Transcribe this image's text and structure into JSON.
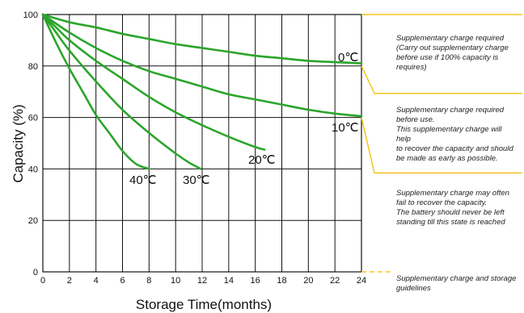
{
  "chart_data": {
    "type": "line",
    "xlabel": "Storage  Time(months)",
    "ylabel": "Capacity  (%)",
    "xlim": [
      0,
      24
    ],
    "ylim": [
      0,
      100
    ],
    "xticks": [
      "0",
      "2",
      "4",
      "6",
      "8",
      "10",
      "12",
      "14",
      "16",
      "18",
      "20",
      "22",
      "24"
    ],
    "yticks": [
      "0",
      "20",
      "40",
      "60",
      "80",
      "100"
    ],
    "grid": true,
    "series": [
      {
        "name": "0℃",
        "x": [
          0,
          2,
          4,
          6,
          8,
          10,
          12,
          14,
          16,
          18,
          20,
          22,
          24
        ],
        "y": [
          100,
          97,
          95,
          92.5,
          90.5,
          88.5,
          87,
          85.5,
          84,
          83,
          82,
          81.5,
          81
        ]
      },
      {
        "name": "10℃",
        "x": [
          0,
          2,
          4,
          6,
          8,
          10,
          12,
          14,
          16,
          18,
          20,
          22,
          24
        ],
        "y": [
          100,
          93,
          87,
          82,
          78,
          75,
          72,
          69,
          67,
          65,
          63,
          61.5,
          60.5
        ]
      },
      {
        "name": "20℃",
        "x": [
          0,
          1,
          2,
          4,
          6,
          8,
          10,
          12,
          14,
          16,
          16.7
        ],
        "y": [
          100,
          95,
          90,
          82,
          75,
          68,
          62,
          57,
          52.5,
          48.5,
          47.5
        ]
      },
      {
        "name": "30℃",
        "x": [
          0,
          1,
          2,
          4,
          6,
          8,
          10,
          11,
          11.9
        ],
        "y": [
          100,
          93,
          86,
          74,
          63,
          54,
          46,
          42.5,
          40
        ]
      },
      {
        "name": "40℃",
        "x": [
          0,
          1,
          2,
          3,
          4,
          5,
          6,
          7,
          8
        ],
        "y": [
          100,
          89,
          79,
          70,
          61,
          54,
          47,
          42,
          40
        ]
      }
    ],
    "curve_color": "#2ba52b",
    "zones": [
      {
        "lines": [
          "Supplementary charge required",
          "(Carry out supplementary charge",
          "before use if 100% capacity is",
          "requires)"
        ]
      },
      {
        "lines": [
          "Supplementary charge required",
          "before use.",
          "This supplementary charge will help",
          "to recover the capacity and should",
          "be made  as early as possible."
        ]
      },
      {
        "lines": [
          "Supplementary charge may often",
          "fail to recover the capacity.",
          "The battery should never be left",
          "standing till this state is reached"
        ]
      },
      {
        "lines": [
          "Supplementary charge and storage",
          "guidelines"
        ]
      }
    ],
    "zone_color": "#f5c518"
  }
}
